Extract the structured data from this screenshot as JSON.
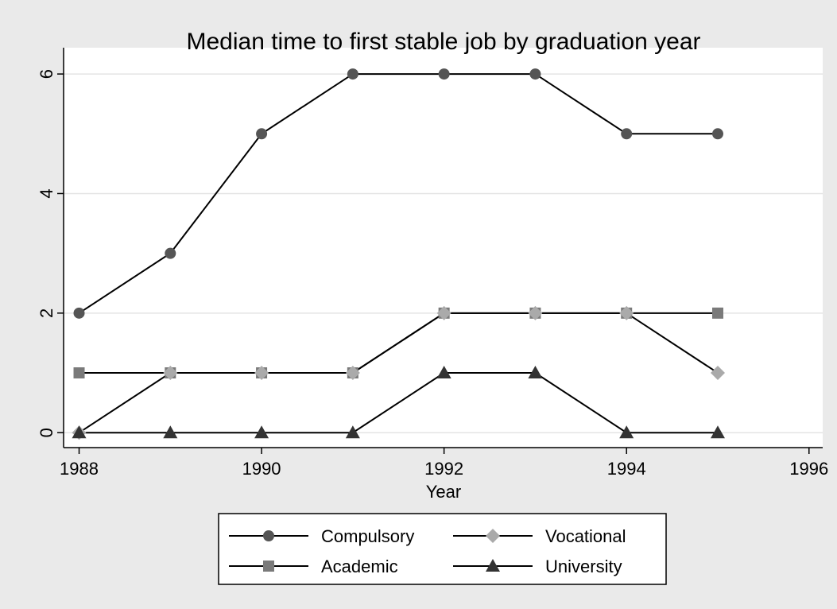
{
  "chart_data": {
    "type": "line",
    "title": "Median time to first stable job by graduation year",
    "x_label": "Year",
    "x": [
      1988,
      1989,
      1990,
      1991,
      1992,
      1993,
      1994,
      1995
    ],
    "series": [
      {
        "name": "Compulsory",
        "color": "#555555",
        "marker": "circle",
        "values": [
          2,
          3,
          5,
          6,
          6,
          6,
          5,
          5
        ]
      },
      {
        "name": "Academic",
        "color": "#7a7a7a",
        "marker": "square",
        "values": [
          1,
          1,
          1,
          1,
          2,
          2,
          2,
          2
        ]
      },
      {
        "name": "Vocational",
        "color": "#aaaaaa",
        "marker": "diamond",
        "values": [
          0,
          1,
          1,
          1,
          2,
          2,
          2,
          1
        ]
      },
      {
        "name": "University",
        "color": "#333333",
        "marker": "triangle",
        "values": [
          0,
          0,
          0,
          0,
          1,
          1,
          0,
          0
        ]
      }
    ],
    "line_color": "#000000",
    "xlim": [
      1987.83,
      1996.15
    ],
    "xticks": [
      1988,
      1990,
      1992,
      1994,
      1996
    ],
    "ylim": [
      -0.25,
      6.44
    ],
    "yticks": [
      0,
      2,
      4,
      6
    ],
    "grid": true,
    "legend": "bottom"
  }
}
